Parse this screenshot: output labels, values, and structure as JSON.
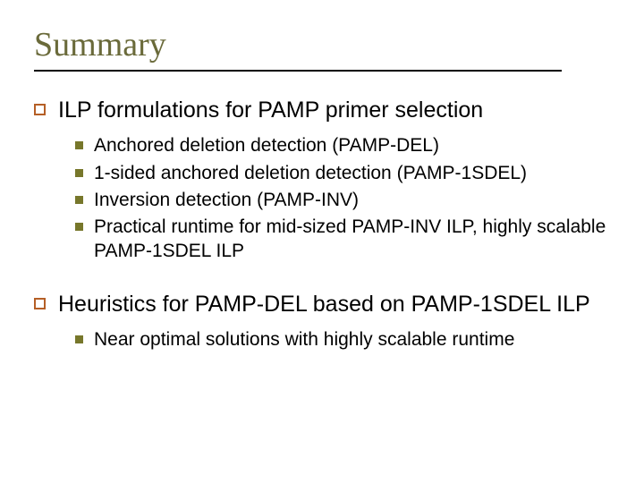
{
  "slide": {
    "title": "Summary",
    "title_color": "#6a6a3a",
    "title_font_family": "Georgia, serif",
    "title_fontsize": 38,
    "rule_color": "#000000",
    "background_color": "#ffffff",
    "top_bullet": {
      "shape": "hollow-square",
      "border_color": "#b55f26",
      "fill_color": "#ffffff",
      "size": 13,
      "border_width": 2
    },
    "sub_bullet": {
      "shape": "filled-square",
      "fill_color": "#77772b",
      "size": 9
    },
    "body_color": "#000000",
    "top_fontsize": 25,
    "sub_fontsize": 21,
    "items": [
      {
        "text": "ILP formulations for PAMP primer selection",
        "sub": [
          "Anchored deletion detection (PAMP-DEL)",
          "1-sided anchored deletion detection (PAMP-1SDEL)",
          "Inversion detection (PAMP-INV)",
          "Practical runtime for mid-sized PAMP-INV ILP, highly scalable PAMP-1SDEL ILP"
        ]
      },
      {
        "text": "Heuristics for PAMP-DEL based on PAMP-1SDEL ILP",
        "sub": [
          "Near optimal solutions with highly scalable runtime"
        ]
      }
    ]
  }
}
